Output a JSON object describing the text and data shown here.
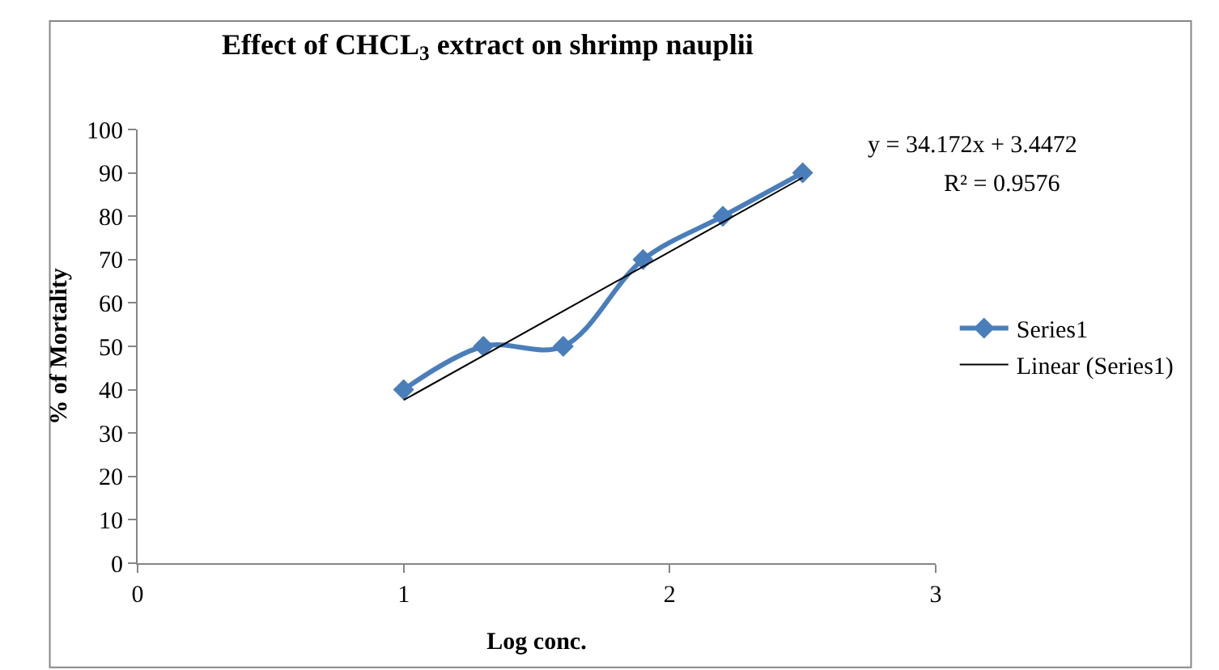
{
  "chart_data": {
    "type": "line",
    "title": "Effect of CHCL$_{3}$ extract on shrimp nauplii",
    "xlabel": "Log conc.",
    "ylabel": "% of Mortality",
    "x": [
      1,
      1.3,
      1.6,
      1.9,
      2.2,
      2.5
    ],
    "series": [
      {
        "name": "Series1",
        "color": "#4a7ebb",
        "values": [
          40,
          50,
          50,
          70,
          80,
          90
        ],
        "marker": "diamond"
      },
      {
        "name": "Linear (Series1)",
        "color": "#000000",
        "type": "line",
        "x": [
          1,
          2.5
        ],
        "values": [
          37.6,
          88.9
        ],
        "marker": "none"
      }
    ],
    "annotations": [
      "y = 34.172x + 3.4472",
      "R² = 0.9576"
    ],
    "xlim": [
      0,
      3
    ],
    "xticks": [
      0,
      1,
      2,
      3
    ],
    "ylim": [
      0,
      100
    ],
    "yticks": [
      0,
      10,
      20,
      30,
      40,
      50,
      60,
      70,
      80,
      90,
      100
    ],
    "legend": "right"
  }
}
